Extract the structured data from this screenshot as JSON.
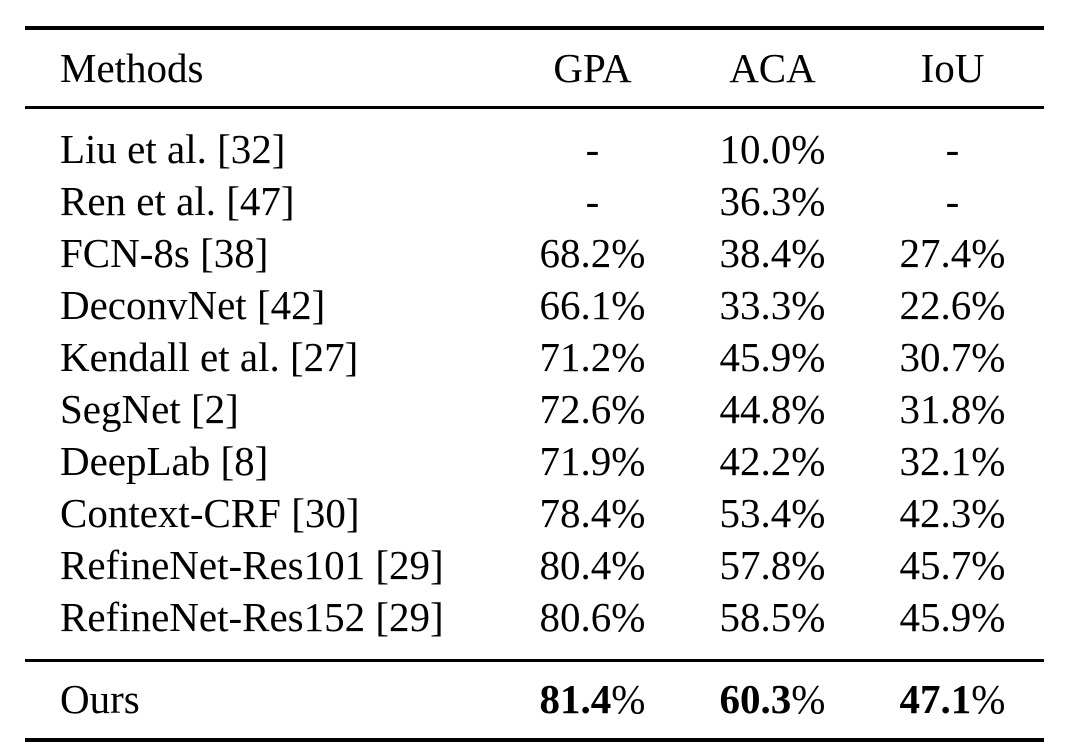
{
  "table": {
    "headers": {
      "method": "Methods",
      "gpa": "GPA",
      "aca": "ACA",
      "iou": "IoU"
    },
    "rows": [
      {
        "method": "Liu et al. [32]",
        "gpa": "-",
        "aca": "10.0%",
        "iou": "-"
      },
      {
        "method": "Ren et al. [47]",
        "gpa": "-",
        "aca": "36.3%",
        "iou": "-"
      },
      {
        "method": "FCN-8s [38]",
        "gpa": "68.2%",
        "aca": "38.4%",
        "iou": "27.4%"
      },
      {
        "method": "DeconvNet [42]",
        "gpa": "66.1%",
        "aca": "33.3%",
        "iou": "22.6%"
      },
      {
        "method": "Kendall et al. [27]",
        "gpa": "71.2%",
        "aca": "45.9%",
        "iou": "30.7%"
      },
      {
        "method": "SegNet [2]",
        "gpa": "72.6%",
        "aca": "44.8%",
        "iou": "31.8%"
      },
      {
        "method": "DeepLab [8]",
        "gpa": "71.9%",
        "aca": "42.2%",
        "iou": "32.1%"
      },
      {
        "method": "Context-CRF [30]",
        "gpa": "78.4%",
        "aca": "53.4%",
        "iou": "42.3%"
      },
      {
        "method": "RefineNet-Res101 [29]",
        "gpa": "80.4%",
        "aca": "57.8%",
        "iou": "45.7%"
      },
      {
        "method": "RefineNet-Res152 [29]",
        "gpa": "80.6%",
        "aca": "58.5%",
        "iou": "45.9%"
      }
    ],
    "ours": {
      "method": "Ours",
      "gpa_num": "81.4",
      "aca_num": "60.3",
      "iou_num": "47.1",
      "percent": "%"
    }
  }
}
